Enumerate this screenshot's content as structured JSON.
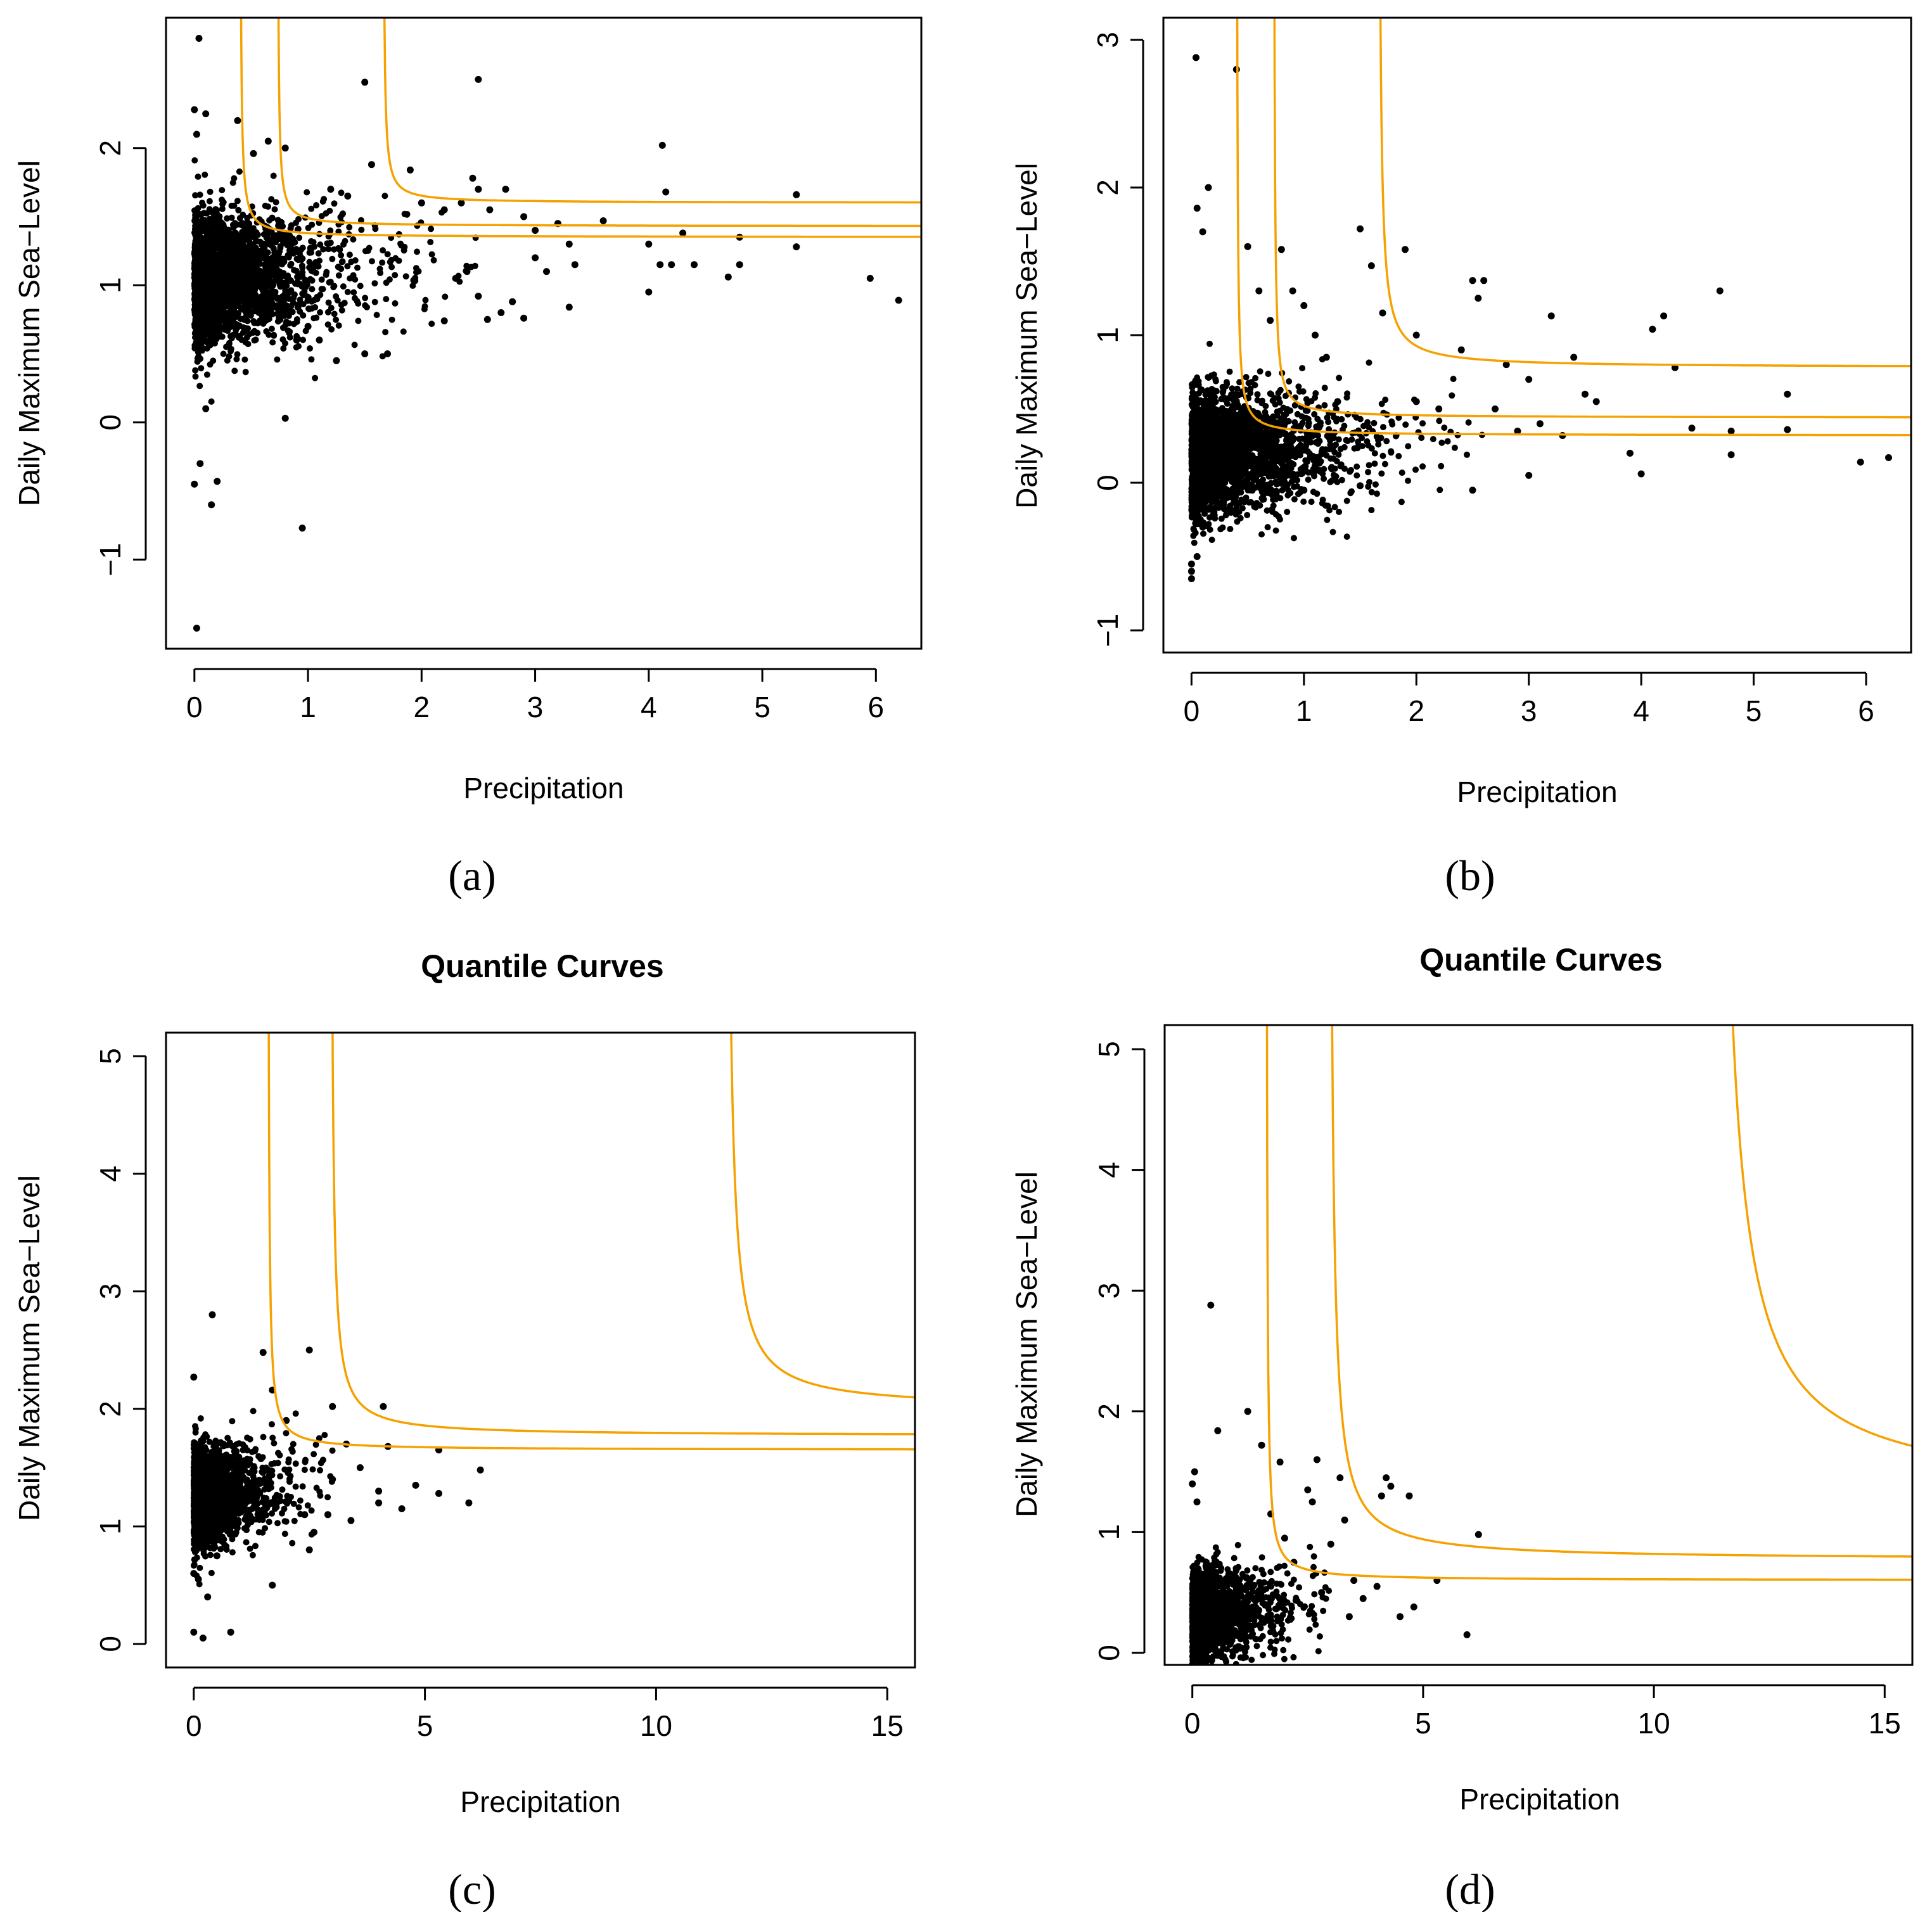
{
  "chart_data": [
    {
      "panel": "(a)",
      "type": "scatter",
      "title": "",
      "xlabel": "Precipitation",
      "ylabel": "Daily Maximum Sea−Level",
      "xlim": [
        -0.25,
        6.4
      ],
      "ylim": [
        -1.65,
        2.95
      ],
      "xticks": [
        0,
        1,
        2,
        3,
        4,
        5,
        6
      ],
      "yticks": [
        -1,
        0,
        1,
        2
      ],
      "xtick_labels": [
        "0",
        "1",
        "2",
        "3",
        "4",
        "5",
        "6"
      ],
      "ytick_labels": [
        "−1",
        "0",
        "1",
        "2"
      ],
      "cloud": {
        "n": 2600,
        "seed": 11,
        "x_scale": 0.42,
        "y_mean": 1.05,
        "y_sd": 0.24,
        "y_slope": 0.05,
        "x_cap": 2.6
      },
      "series": [
        {
          "name": "scatter outliers",
          "points": [
            [
              0.04,
              2.8
            ],
            [
              0.0,
              2.28
            ],
            [
              0.02,
              2.1
            ],
            [
              0.1,
              2.25
            ],
            [
              0.38,
              2.2
            ],
            [
              0.52,
              1.96
            ],
            [
              0.65,
              2.05
            ],
            [
              0.8,
              2.0
            ],
            [
              1.5,
              2.48
            ],
            [
              1.56,
              1.88
            ],
            [
              1.9,
              1.84
            ],
            [
              2.45,
              1.78
            ],
            [
              2.5,
              2.5
            ],
            [
              2.74,
              1.7
            ],
            [
              2.5,
              1.7
            ],
            [
              2.9,
              1.5
            ],
            [
              3.0,
              1.4
            ],
            [
              3.2,
              1.45
            ],
            [
              3.3,
              1.3
            ],
            [
              3.3,
              0.84
            ],
            [
              3.6,
              1.47
            ],
            [
              3.35,
              1.15
            ],
            [
              2.3,
              1.05
            ],
            [
              2.4,
              1.1
            ],
            [
              2.2,
              0.74
            ],
            [
              2.5,
              0.92
            ],
            [
              2.7,
              0.8
            ],
            [
              2.58,
              0.75
            ],
            [
              2.8,
              0.88
            ],
            [
              2.9,
              0.76
            ],
            [
              3.0,
              1.2
            ],
            [
              3.1,
              1.1
            ],
            [
              4.0,
              1.3
            ],
            [
              4.0,
              0.95
            ],
            [
              4.1,
              1.15
            ],
            [
              4.12,
              2.02
            ],
            [
              4.15,
              1.68
            ],
            [
              4.2,
              1.15
            ],
            [
              4.3,
              1.38
            ],
            [
              4.4,
              1.15
            ],
            [
              4.8,
              1.35
            ],
            [
              4.8,
              1.15
            ],
            [
              4.7,
              1.06
            ],
            [
              5.3,
              1.66
            ],
            [
              5.3,
              1.28
            ],
            [
              5.95,
              1.05
            ],
            [
              6.2,
              0.89
            ],
            [
              0.15,
              -0.6
            ],
            [
              0.1,
              0.1
            ],
            [
              0.2,
              -0.43
            ],
            [
              0.8,
              0.03
            ],
            [
              0.95,
              -0.77
            ],
            [
              0.02,
              -1.5
            ],
            [
              0.0,
              -0.45
            ],
            [
              0.05,
              -0.3
            ],
            [
              1.25,
              0.45
            ],
            [
              1.5,
              0.5
            ],
            [
              1.7,
              0.5
            ],
            [
              1.2,
              1.7
            ],
            [
              1.35,
              1.65
            ],
            [
              2.0,
              1.6
            ],
            [
              2.2,
              1.55
            ],
            [
              2.35,
              1.6
            ],
            [
              2.6,
              1.55
            ],
            [
              0.9,
              0.6
            ],
            [
              1.0,
              0.7
            ],
            [
              1.1,
              0.6
            ]
          ]
        },
        {
          "name": "quantile curve 1",
          "x0": 0.4,
          "h": 1.35,
          "k": 0.018
        },
        {
          "name": "quantile curve 2",
          "x0": 0.73,
          "h": 1.43,
          "k": 0.016
        },
        {
          "name": "quantile curve 3",
          "x0": 1.66,
          "h": 1.6,
          "k": 0.018
        }
      ]
    },
    {
      "panel": "(b)",
      "type": "scatter",
      "title": "",
      "xlabel": "Precipitation",
      "ylabel": "Daily Maximum Sea−Level",
      "xlim": [
        -0.25,
        6.4
      ],
      "ylim": [
        -1.15,
        3.15
      ],
      "xticks": [
        0,
        1,
        2,
        3,
        4,
        5,
        6
      ],
      "yticks": [
        -1,
        0,
        1,
        2,
        3
      ],
      "xtick_labels": [
        "0",
        "1",
        "2",
        "3",
        "4",
        "5",
        "6"
      ],
      "ytick_labels": [
        "−1",
        "0",
        "1",
        "2",
        "3"
      ],
      "cloud": {
        "n": 2600,
        "seed": 23,
        "x_scale": 0.42,
        "y_mean": 0.18,
        "y_sd": 0.2,
        "y_slope": 0.04,
        "x_cap": 2.6
      },
      "series": [
        {
          "name": "scatter outliers",
          "points": [
            [
              0.04,
              2.88
            ],
            [
              0.4,
              2.8
            ],
            [
              0.15,
              2.0
            ],
            [
              0.05,
              1.86
            ],
            [
              0.1,
              1.7
            ],
            [
              0.5,
              1.6
            ],
            [
              0.8,
              1.58
            ],
            [
              1.5,
              1.72
            ],
            [
              1.6,
              1.47
            ],
            [
              1.7,
              1.15
            ],
            [
              1.9,
              1.58
            ],
            [
              2.0,
              1.0
            ],
            [
              2.5,
              1.37
            ],
            [
              2.55,
              1.25
            ],
            [
              2.6,
              1.37
            ],
            [
              2.4,
              0.9
            ],
            [
              2.8,
              0.8
            ],
            [
              3.0,
              0.7
            ],
            [
              3.2,
              1.13
            ],
            [
              3.4,
              0.85
            ],
            [
              3.5,
              0.6
            ],
            [
              3.3,
              0.32
            ],
            [
              3.6,
              0.55
            ],
            [
              3.9,
              0.2
            ],
            [
              4.0,
              0.06
            ],
            [
              4.1,
              1.04
            ],
            [
              4.2,
              1.13
            ],
            [
              4.3,
              0.78
            ],
            [
              4.45,
              0.37
            ],
            [
              4.7,
              1.3
            ],
            [
              4.8,
              0.35
            ],
            [
              4.8,
              0.19
            ],
            [
              5.3,
              0.6
            ],
            [
              5.3,
              0.36
            ],
            [
              5.95,
              0.14
            ],
            [
              6.2,
              0.17
            ],
            [
              0.0,
              -0.65
            ],
            [
              0.0,
              -0.6
            ],
            [
              0.0,
              -0.55
            ],
            [
              0.05,
              -0.5
            ],
            [
              0.1,
              -0.3
            ],
            [
              0.2,
              -0.2
            ],
            [
              0.5,
              0.05
            ],
            [
              1.0,
              -0.05
            ],
            [
              1.5,
              -0.02
            ],
            [
              2.5,
              -0.05
            ],
            [
              3.0,
              0.05
            ],
            [
              2.0,
              0.55
            ],
            [
              2.2,
              0.5
            ],
            [
              1.3,
              0.55
            ],
            [
              1.0,
              1.2
            ],
            [
              1.1,
              1.0
            ],
            [
              0.7,
              1.1
            ],
            [
              0.6,
              1.3
            ],
            [
              2.7,
              0.5
            ],
            [
              2.9,
              0.35
            ],
            [
              3.1,
              0.4
            ],
            [
              0.9,
              1.3
            ],
            [
              1.2,
              0.85
            ]
          ]
        },
        {
          "name": "quantile curve 1",
          "x0": 0.4,
          "h": 0.32,
          "k": 0.02
        },
        {
          "name": "quantile curve 2",
          "x0": 0.73,
          "h": 0.44,
          "k": 0.022
        },
        {
          "name": "quantile curve 3",
          "x0": 1.66,
          "h": 0.78,
          "k": 0.05
        }
      ]
    },
    {
      "panel": "(c)",
      "type": "scatter",
      "title": "Quantile Curves",
      "xlabel": "Precipitation",
      "ylabel": "Daily Maximum Sea−Level",
      "xlim": [
        -0.6,
        15.6
      ],
      "ylim": [
        -0.2,
        5.2
      ],
      "xticks": [
        0,
        5,
        10,
        15
      ],
      "yticks": [
        0,
        1,
        2,
        3,
        4,
        5
      ],
      "xtick_labels": [
        "0",
        "5",
        "10",
        "15"
      ],
      "ytick_labels": [
        "0",
        "1",
        "2",
        "3",
        "4",
        "5"
      ],
      "cloud": {
        "n": 2000,
        "seed": 37,
        "x_scale": 0.55,
        "y_mean": 1.25,
        "y_sd": 0.2,
        "y_slope": 0.04,
        "x_cap": 3.0
      },
      "series": [
        {
          "name": "scatter outliers",
          "points": [
            [
              0.4,
              2.8
            ],
            [
              0.0,
              2.27
            ],
            [
              1.5,
              2.48
            ],
            [
              2.5,
              2.5
            ],
            [
              1.7,
              2.16
            ],
            [
              3.0,
              2.02
            ],
            [
              4.1,
              2.02
            ],
            [
              4.2,
              1.68
            ],
            [
              2.0,
              1.9
            ],
            [
              3.3,
              1.7
            ],
            [
              4.0,
              1.3
            ],
            [
              4.0,
              1.2
            ],
            [
              4.5,
              1.15
            ],
            [
              4.8,
              1.35
            ],
            [
              5.3,
              1.65
            ],
            [
              5.3,
              1.28
            ],
            [
              5.95,
              1.2
            ],
            [
              6.2,
              1.48
            ],
            [
              3.0,
              1.4
            ],
            [
              2.6,
              0.95
            ],
            [
              2.9,
              1.1
            ],
            [
              2.4,
              1.1
            ],
            [
              3.4,
              1.05
            ],
            [
              0.0,
              0.1
            ],
            [
              0.2,
              0.05
            ],
            [
              0.8,
              0.1
            ],
            [
              1.7,
              0.5
            ],
            [
              0.3,
              0.4
            ],
            [
              0.1,
              0.55
            ],
            [
              0.0,
              0.6
            ],
            [
              0.5,
              0.75
            ],
            [
              2.5,
              0.8
            ],
            [
              3.6,
              1.5
            ]
          ]
        },
        {
          "name": "quantile curve 1",
          "x0": 1.6,
          "h": 1.65,
          "k": 0.08
        },
        {
          "name": "quantile curve 2",
          "x0": 2.95,
          "h": 1.77,
          "k": 0.18
        },
        {
          "name": "quantile curve 3",
          "x0": 11.5,
          "h": 2.0,
          "k": 0.4
        }
      ]
    },
    {
      "panel": "(d)",
      "type": "scatter",
      "title": "Quantile Curves",
      "xlabel": "Precipitation",
      "ylabel": "Daily Maximum Sea−Level",
      "xlim": [
        -0.6,
        15.6
      ],
      "ylim": [
        -0.1,
        5.2
      ],
      "xticks": [
        0,
        5,
        10,
        15
      ],
      "yticks": [
        0,
        1,
        2,
        3,
        4,
        5
      ],
      "xtick_labels": [
        "0",
        "5",
        "10",
        "15"
      ],
      "ytick_labels": [
        "0",
        "1",
        "2",
        "3",
        "4",
        "5"
      ],
      "cloud": {
        "n": 2000,
        "seed": 53,
        "x_scale": 0.55,
        "y_mean": 0.3,
        "y_sd": 0.18,
        "y_slope": 0.05,
        "x_cap": 3.0
      },
      "series": [
        {
          "name": "scatter outliers",
          "points": [
            [
              0.4,
              2.88
            ],
            [
              0.55,
              1.84
            ],
            [
              1.2,
              2.0
            ],
            [
              1.5,
              1.72
            ],
            [
              1.9,
              1.58
            ],
            [
              2.7,
              1.6
            ],
            [
              3.2,
              1.45
            ],
            [
              3.3,
              1.1
            ],
            [
              4.1,
              1.3
            ],
            [
              4.2,
              1.45
            ],
            [
              4.3,
              1.38
            ],
            [
              4.7,
              1.3
            ],
            [
              4.8,
              0.38
            ],
            [
              4.0,
              0.55
            ],
            [
              3.5,
              0.6
            ],
            [
              3.7,
              0.45
            ],
            [
              4.5,
              0.3
            ],
            [
              5.3,
              0.6
            ],
            [
              5.95,
              0.15
            ],
            [
              6.2,
              0.98
            ],
            [
              2.5,
              1.35
            ],
            [
              2.6,
              1.25
            ],
            [
              0.05,
              1.5
            ],
            [
              0.0,
              1.4
            ],
            [
              0.1,
              1.25
            ],
            [
              0.0,
              -0.1
            ],
            [
              0.3,
              -0.05
            ],
            [
              2.0,
              0.95
            ],
            [
              1.7,
              1.15
            ],
            [
              3.0,
              0.9
            ],
            [
              2.2,
              0.75
            ],
            [
              2.8,
              0.5
            ],
            [
              3.4,
              0.3
            ]
          ]
        },
        {
          "name": "quantile curve 1",
          "x0": 1.6,
          "h": 0.6,
          "k": 0.08
        },
        {
          "name": "quantile curve 2",
          "x0": 2.95,
          "h": 0.77,
          "k": 0.35
        },
        {
          "name": "quantile curve 3",
          "x0": 11.25,
          "h": 1.3,
          "k": 1.8
        }
      ]
    }
  ],
  "style": {
    "curve_color": "#f5a100",
    "point_color": "#000000"
  }
}
